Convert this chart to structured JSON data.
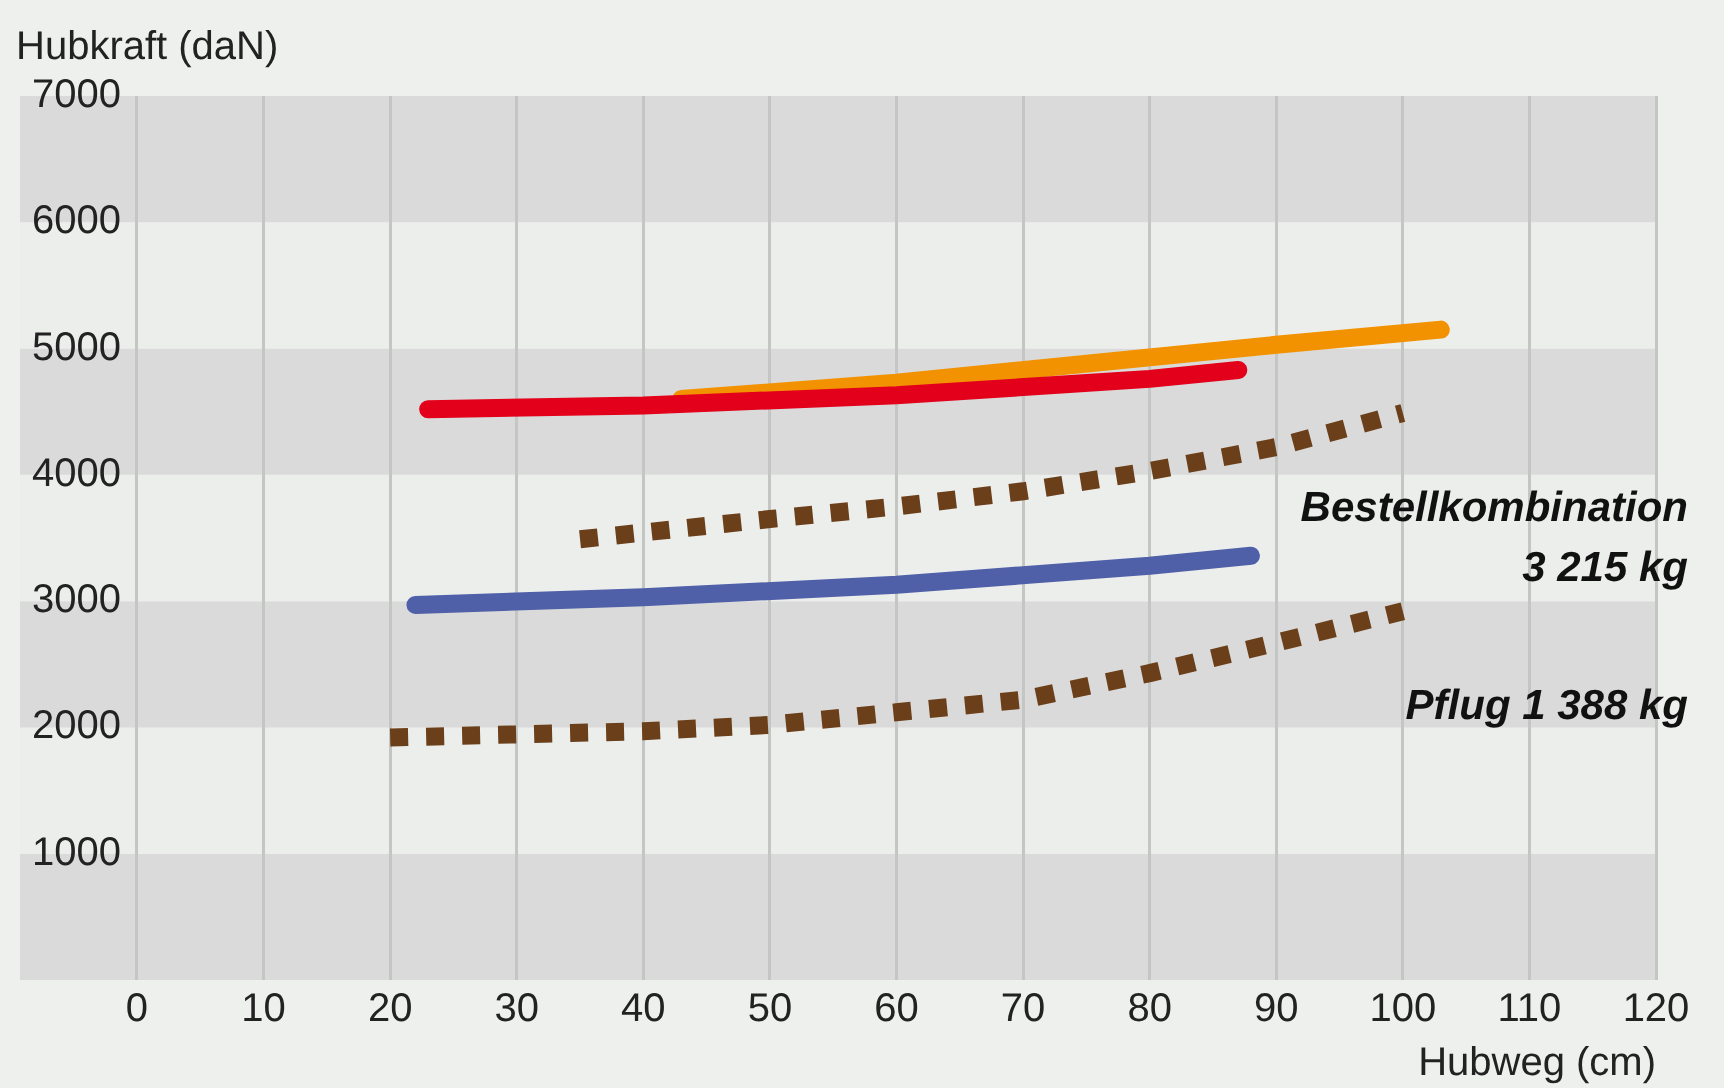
{
  "chart_data": {
    "type": "line",
    "ylabel": "Hubkraft (daN)",
    "xlabel": "Hubweg (cm)",
    "xlim": [
      0,
      120
    ],
    "xticks": [
      0,
      10,
      20,
      30,
      40,
      50,
      60,
      70,
      80,
      90,
      100,
      110,
      120
    ],
    "ylim": [
      0,
      7000
    ],
    "yticks": [
      1000,
      2000,
      3000,
      4000,
      5000,
      6000,
      7000
    ],
    "grid": "x",
    "legend": false,
    "marker": "none",
    "series": [
      {
        "color": "#e2001a",
        "line_style": "solid",
        "x": [
          23,
          40,
          60,
          80,
          87
        ],
        "values": [
          4520,
          4550,
          4630,
          4760,
          4830
        ]
      },
      {
        "color": "#f39200",
        "line_style": "solid",
        "x": [
          43,
          60,
          80,
          90,
          103
        ],
        "values": [
          4600,
          4730,
          4930,
          5030,
          5150
        ]
      },
      {
        "color": "#4f5fa8",
        "line_style": "solid",
        "x": [
          22,
          40,
          60,
          80,
          88
        ],
        "values": [
          2970,
          3030,
          3130,
          3280,
          3360
        ]
      },
      {
        "name": "Bestellkombination 3 215 kg",
        "color": "#6b3f1a",
        "line_style": "dotted",
        "x": [
          35,
          50,
          60,
          70,
          80,
          90,
          100
        ],
        "values": [
          3490,
          3650,
          3750,
          3870,
          4030,
          4220,
          4490
        ]
      },
      {
        "name": "Pflug 1 388 kg",
        "color": "#6b3f1a",
        "line_style": "dotted",
        "x": [
          20,
          40,
          50,
          60,
          70,
          80,
          90,
          100
        ],
        "values": [
          1920,
          1970,
          2020,
          2120,
          2220,
          2430,
          2670,
          2920
        ]
      }
    ]
  }
}
